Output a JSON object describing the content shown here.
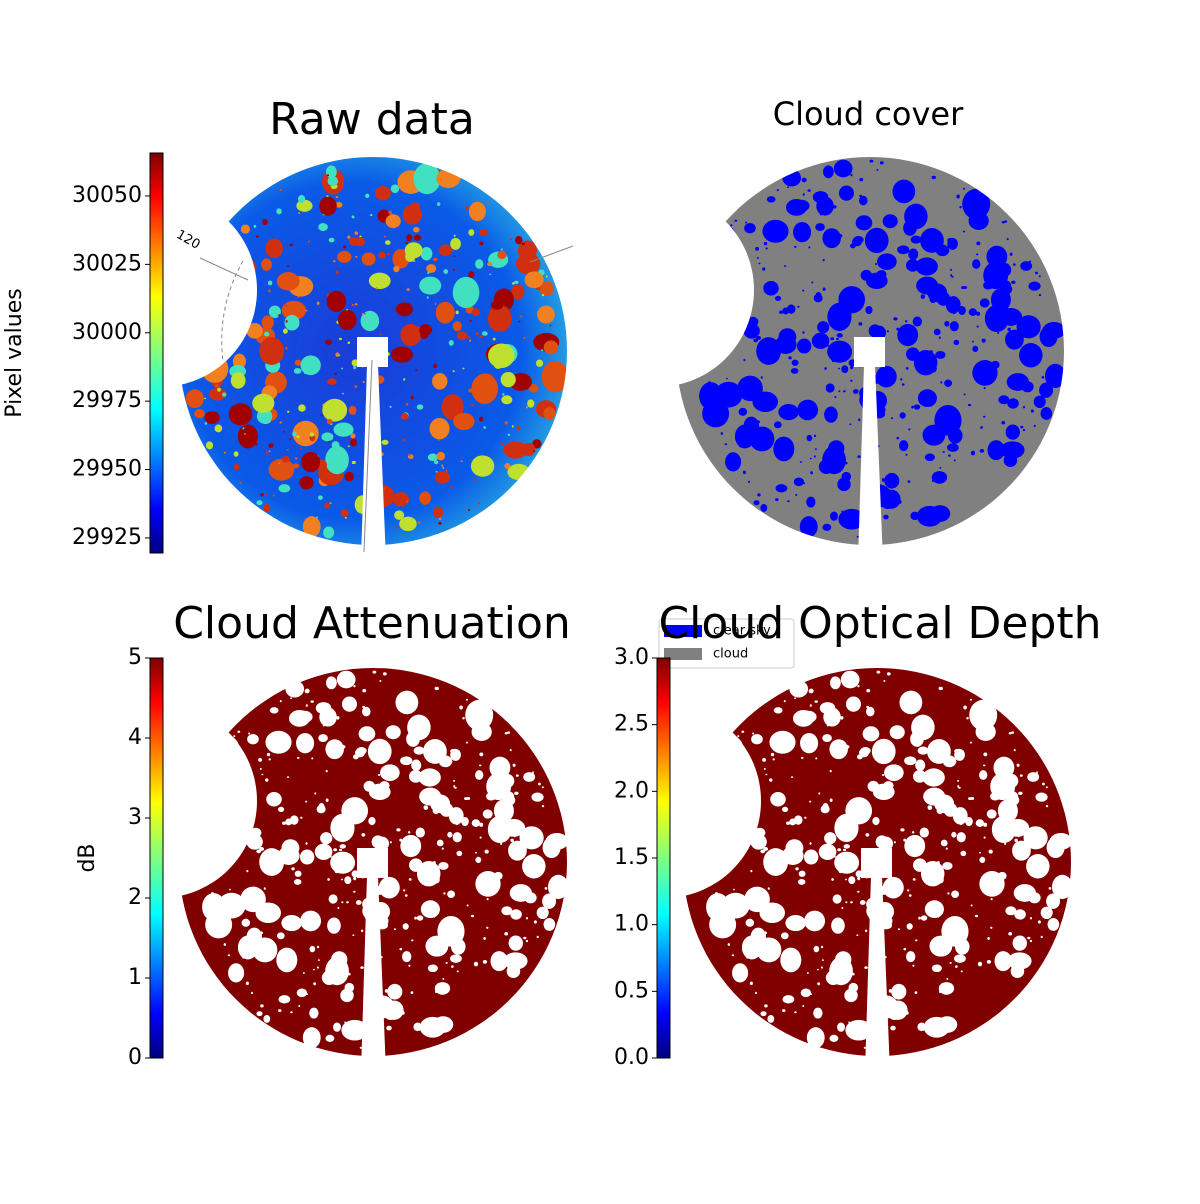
{
  "chart_data": [
    {
      "type": "image",
      "title": "Raw data",
      "image_style": "raw",
      "colorbar": {
        "label": "Pixel values",
        "colormap": "jet",
        "lim": [
          29919.5,
          30065.7
        ],
        "ticks": [
          29925,
          29950,
          29975,
          30000,
          30025,
          30050
        ]
      },
      "polar_tick_label": "120"
    },
    {
      "type": "image",
      "title": "Cloud cover",
      "image_style": "mask",
      "legend": [
        {
          "name": "clear sky",
          "color": "#0000ff"
        },
        {
          "name": "cloud",
          "color": "#808080"
        }
      ]
    },
    {
      "type": "image",
      "title": "Cloud Attenuation",
      "image_style": "solid",
      "color": "#800000",
      "colorbar": {
        "label": "dB",
        "colormap": "jet",
        "lim": [
          0,
          5
        ],
        "ticks": [
          0,
          1,
          2,
          3,
          4,
          5
        ]
      }
    },
    {
      "type": "image",
      "title": "Cloud Optical Depth",
      "image_style": "solid",
      "color": "#800000",
      "colorbar": {
        "colormap": "jet",
        "lim": [
          0,
          3
        ],
        "ticks": [
          {
            "value": 0,
            "label": "0.0"
          },
          0.5,
          {
            "value": 1,
            "label": "1.0"
          },
          1.5,
          {
            "value": 2,
            "label": "2.0"
          },
          2.5,
          {
            "value": 3,
            "label": "3.0"
          }
        ]
      }
    }
  ]
}
